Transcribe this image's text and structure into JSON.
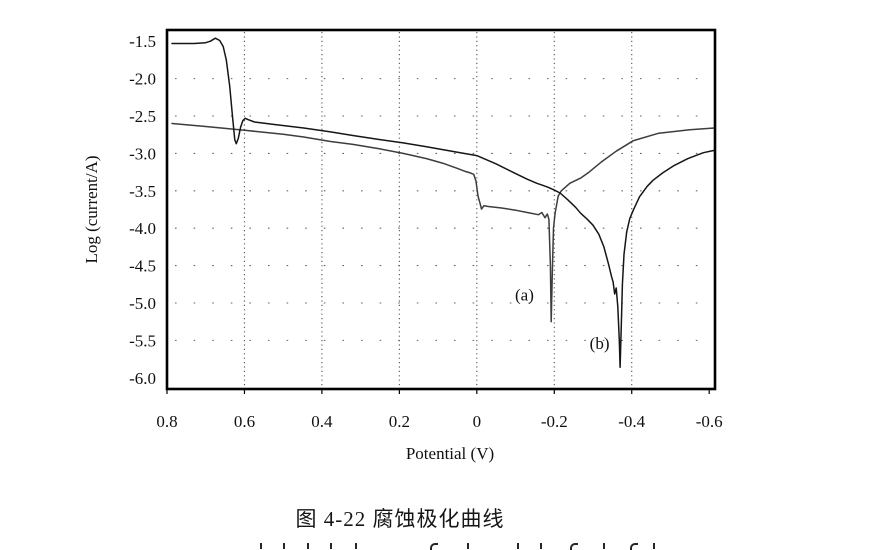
{
  "figure": {
    "caption": "图 4-22 腐蚀极化曲线"
  },
  "chart_data": {
    "type": "line",
    "title": "图 4-22 腐蚀极化曲线",
    "xlabel": "Potential (V)",
    "ylabel": "Log (current/A)",
    "x_axis": {
      "left_value": 0.8,
      "right_value": -0.615,
      "reversed": true,
      "ticks": [
        {
          "value": 0.8,
          "label": "0.8"
        },
        {
          "value": 0.6,
          "label": "0.6"
        },
        {
          "value": 0.4,
          "label": "0.4"
        },
        {
          "value": 0.2,
          "label": "0.2"
        },
        {
          "value": 0.0,
          "label": "0"
        },
        {
          "value": -0.2,
          "label": "-0.2"
        },
        {
          "value": -0.4,
          "label": "-0.4"
        },
        {
          "value": -0.6,
          "label": "-0.6"
        }
      ]
    },
    "y_axis": {
      "top_value": -1.35,
      "bottom_value": -6.15,
      "ticks": [
        {
          "value": -1.5,
          "label": "-1.5"
        },
        {
          "value": -2.0,
          "label": "-2.0"
        },
        {
          "value": -2.5,
          "label": "-2.5"
        },
        {
          "value": -3.0,
          "label": "-3.0"
        },
        {
          "value": -3.5,
          "label": "-3.5"
        },
        {
          "value": -4.0,
          "label": "-4.0"
        },
        {
          "value": -4.5,
          "label": "-4.5"
        },
        {
          "value": -5.0,
          "label": "-5.0"
        },
        {
          "value": -5.5,
          "label": "-5.5"
        },
        {
          "value": -6.0,
          "label": "-6.0"
        }
      ]
    },
    "grid": {
      "style": "dotted",
      "vertical_at": [
        0.6,
        0.4,
        0.2,
        0.0,
        -0.2,
        -0.4
      ],
      "horizontal_at": [
        -2.0,
        -2.5,
        -3.0,
        -3.5,
        -4.0,
        -4.5,
        -5.0,
        -5.5
      ]
    },
    "series": [
      {
        "id": "a",
        "label": "(a)",
        "color": "#3d3d3d",
        "label_at": {
          "x": -0.123,
          "y": -4.9
        },
        "corrosion_potential_V": -0.19,
        "points": [
          [
            0.787,
            -2.6
          ],
          [
            0.7,
            -2.64
          ],
          [
            0.6,
            -2.69
          ],
          [
            0.5,
            -2.745
          ],
          [
            0.447,
            -2.78
          ],
          [
            0.38,
            -2.84
          ],
          [
            0.32,
            -2.88
          ],
          [
            0.25,
            -2.94
          ],
          [
            0.19,
            -3.0
          ],
          [
            0.13,
            -3.07
          ],
          [
            0.089,
            -3.13
          ],
          [
            0.05,
            -3.2
          ],
          [
            0.03,
            -3.24
          ],
          [
            0.017,
            -3.26
          ],
          [
            0.008,
            -3.28
          ],
          [
            0.002,
            -3.37
          ],
          [
            -0.003,
            -3.57
          ],
          [
            -0.008,
            -3.66
          ],
          [
            -0.012,
            -3.745
          ],
          [
            -0.018,
            -3.7
          ],
          [
            -0.03,
            -3.71
          ],
          [
            -0.064,
            -3.73
          ],
          [
            -0.1,
            -3.76
          ],
          [
            -0.13,
            -3.79
          ],
          [
            -0.159,
            -3.82
          ],
          [
            -0.168,
            -3.79
          ],
          [
            -0.176,
            -3.86
          ],
          [
            -0.182,
            -3.81
          ],
          [
            -0.186,
            -3.88
          ],
          [
            -0.19,
            -4.5
          ],
          [
            -0.192,
            -5.25
          ],
          [
            -0.195,
            -4.6
          ],
          [
            -0.198,
            -4.0
          ],
          [
            -0.202,
            -3.8
          ],
          [
            -0.21,
            -3.57
          ],
          [
            -0.218,
            -3.5
          ],
          [
            -0.24,
            -3.4
          ],
          [
            -0.268,
            -3.33
          ],
          [
            -0.29,
            -3.25
          ],
          [
            -0.32,
            -3.12
          ],
          [
            -0.36,
            -2.97
          ],
          [
            -0.404,
            -2.83
          ],
          [
            -0.47,
            -2.73
          ],
          [
            -0.55,
            -2.685
          ],
          [
            -0.613,
            -2.66
          ]
        ]
      },
      {
        "id": "b",
        "label": "(b)",
        "color": "#161616",
        "label_at": {
          "x": -0.317,
          "y": -5.55
        },
        "corrosion_potential_V": -0.37,
        "points": [
          [
            0.787,
            -1.53
          ],
          [
            0.73,
            -1.53
          ],
          [
            0.7,
            -1.52
          ],
          [
            0.688,
            -1.5
          ],
          [
            0.675,
            -1.46
          ],
          [
            0.664,
            -1.49
          ],
          [
            0.655,
            -1.57
          ],
          [
            0.647,
            -1.75
          ],
          [
            0.638,
            -2.1
          ],
          [
            0.63,
            -2.55
          ],
          [
            0.625,
            -2.82
          ],
          [
            0.621,
            -2.87
          ],
          [
            0.616,
            -2.8
          ],
          [
            0.61,
            -2.65
          ],
          [
            0.604,
            -2.56
          ],
          [
            0.598,
            -2.53
          ],
          [
            0.59,
            -2.55
          ],
          [
            0.574,
            -2.58
          ],
          [
            0.52,
            -2.615
          ],
          [
            0.447,
            -2.66
          ],
          [
            0.38,
            -2.71
          ],
          [
            0.32,
            -2.76
          ],
          [
            0.25,
            -2.815
          ],
          [
            0.19,
            -2.86
          ],
          [
            0.13,
            -2.91
          ],
          [
            0.05,
            -2.985
          ],
          [
            0.0,
            -3.03
          ],
          [
            -0.05,
            -3.14
          ],
          [
            -0.1,
            -3.27
          ],
          [
            -0.13,
            -3.345
          ],
          [
            -0.155,
            -3.4
          ],
          [
            -0.172,
            -3.43
          ],
          [
            -0.185,
            -3.455
          ],
          [
            -0.2,
            -3.49
          ],
          [
            -0.215,
            -3.53
          ],
          [
            -0.235,
            -3.62
          ],
          [
            -0.255,
            -3.72
          ],
          [
            -0.268,
            -3.8
          ],
          [
            -0.285,
            -3.88
          ],
          [
            -0.3,
            -3.96
          ],
          [
            -0.315,
            -4.08
          ],
          [
            -0.328,
            -4.25
          ],
          [
            -0.34,
            -4.48
          ],
          [
            -0.348,
            -4.65
          ],
          [
            -0.352,
            -4.72
          ],
          [
            -0.356,
            -4.88
          ],
          [
            -0.36,
            -4.8
          ],
          [
            -0.364,
            -5.05
          ],
          [
            -0.368,
            -5.5
          ],
          [
            -0.37,
            -5.86
          ],
          [
            -0.373,
            -5.3
          ],
          [
            -0.376,
            -4.75
          ],
          [
            -0.38,
            -4.35
          ],
          [
            -0.387,
            -4.05
          ],
          [
            -0.395,
            -3.87
          ],
          [
            -0.404,
            -3.76
          ],
          [
            -0.42,
            -3.58
          ],
          [
            -0.44,
            -3.44
          ],
          [
            -0.455,
            -3.36
          ],
          [
            -0.48,
            -3.26
          ],
          [
            -0.51,
            -3.16
          ],
          [
            -0.545,
            -3.07
          ],
          [
            -0.585,
            -2.99
          ],
          [
            -0.613,
            -2.96
          ]
        ]
      }
    ]
  }
}
